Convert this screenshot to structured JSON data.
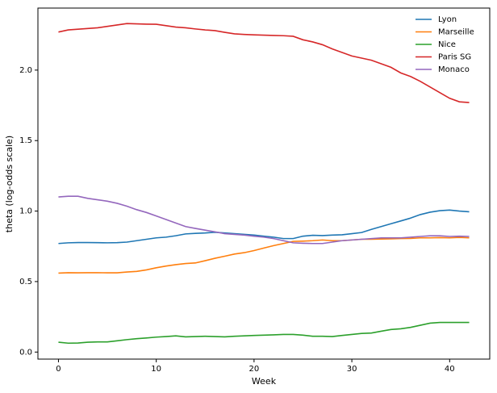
{
  "chart_data": {
    "type": "line",
    "x": [
      0,
      1,
      2,
      3,
      4,
      5,
      6,
      7,
      8,
      9,
      10,
      11,
      12,
      13,
      14,
      15,
      16,
      17,
      18,
      19,
      20,
      21,
      22,
      23,
      24,
      25,
      26,
      27,
      28,
      29,
      30,
      31,
      32,
      33,
      34,
      35,
      36,
      37,
      38,
      39,
      40,
      41,
      42
    ],
    "xlabel": "Week",
    "ylabel": "theta (log-odds scale)",
    "xlim": [
      -2.1,
      44.1
    ],
    "ylim": [
      -0.05,
      2.44
    ],
    "xticks": [
      0,
      10,
      20,
      30,
      40
    ],
    "yticks": [
      {
        "value": 0,
        "label": "0.0"
      },
      0.5,
      {
        "value": 1,
        "label": "1.0"
      },
      1.5,
      {
        "value": 2,
        "label": "2.0"
      }
    ],
    "legend": "upper right",
    "series": [
      {
        "name": "Lyon",
        "color": "#1f77b4",
        "values": [
          0.77,
          0.775,
          0.777,
          0.777,
          0.776,
          0.775,
          0.776,
          0.78,
          0.79,
          0.8,
          0.81,
          0.815,
          0.825,
          0.838,
          0.842,
          0.845,
          0.85,
          0.845,
          0.84,
          0.835,
          0.83,
          0.822,
          0.815,
          0.805,
          0.805,
          0.822,
          0.828,
          0.826,
          0.83,
          0.832,
          0.84,
          0.848,
          0.87,
          0.89,
          0.91,
          0.93,
          0.95,
          0.975,
          0.992,
          1.003,
          1.007,
          1.0,
          0.995
        ]
      },
      {
        "name": "Marseille",
        "color": "#ff7f0e",
        "values": [
          0.56,
          0.563,
          0.562,
          0.563,
          0.563,
          0.562,
          0.562,
          0.568,
          0.572,
          0.583,
          0.598,
          0.61,
          0.62,
          0.628,
          0.632,
          0.648,
          0.665,
          0.68,
          0.695,
          0.705,
          0.72,
          0.738,
          0.755,
          0.77,
          0.785,
          0.787,
          0.79,
          0.795,
          0.79,
          0.79,
          0.795,
          0.8,
          0.8,
          0.802,
          0.803,
          0.805,
          0.806,
          0.81,
          0.81,
          0.812,
          0.81,
          0.813,
          0.81
        ]
      },
      {
        "name": "Nice",
        "color": "#2ca02c",
        "values": [
          0.07,
          0.063,
          0.064,
          0.07,
          0.072,
          0.072,
          0.08,
          0.088,
          0.095,
          0.1,
          0.106,
          0.11,
          0.115,
          0.108,
          0.11,
          0.112,
          0.11,
          0.108,
          0.112,
          0.115,
          0.118,
          0.12,
          0.122,
          0.125,
          0.125,
          0.12,
          0.112,
          0.112,
          0.11,
          0.118,
          0.125,
          0.132,
          0.135,
          0.148,
          0.16,
          0.165,
          0.175,
          0.19,
          0.205,
          0.21,
          0.21,
          0.21,
          0.21
        ]
      },
      {
        "name": "Paris SG",
        "color": "#d62728",
        "values": [
          2.27,
          2.285,
          2.29,
          2.295,
          2.3,
          2.31,
          2.32,
          2.33,
          2.328,
          2.326,
          2.325,
          2.315,
          2.305,
          2.3,
          2.292,
          2.285,
          2.28,
          2.268,
          2.257,
          2.253,
          2.25,
          2.248,
          2.246,
          2.244,
          2.24,
          2.215,
          2.2,
          2.18,
          2.15,
          2.125,
          2.1,
          2.085,
          2.07,
          2.045,
          2.02,
          1.98,
          1.955,
          1.92,
          1.88,
          1.84,
          1.8,
          1.775,
          1.77
        ]
      },
      {
        "name": "Monaco",
        "color": "#9467bd",
        "values": [
          1.1,
          1.105,
          1.105,
          1.09,
          1.08,
          1.07,
          1.055,
          1.035,
          1.01,
          0.99,
          0.965,
          0.94,
          0.915,
          0.89,
          0.877,
          0.865,
          0.853,
          0.84,
          0.835,
          0.83,
          0.822,
          0.815,
          0.805,
          0.79,
          0.775,
          0.772,
          0.77,
          0.77,
          0.78,
          0.79,
          0.795,
          0.8,
          0.805,
          0.81,
          0.81,
          0.81,
          0.815,
          0.82,
          0.825,
          0.825,
          0.82,
          0.822,
          0.82
        ]
      }
    ]
  }
}
